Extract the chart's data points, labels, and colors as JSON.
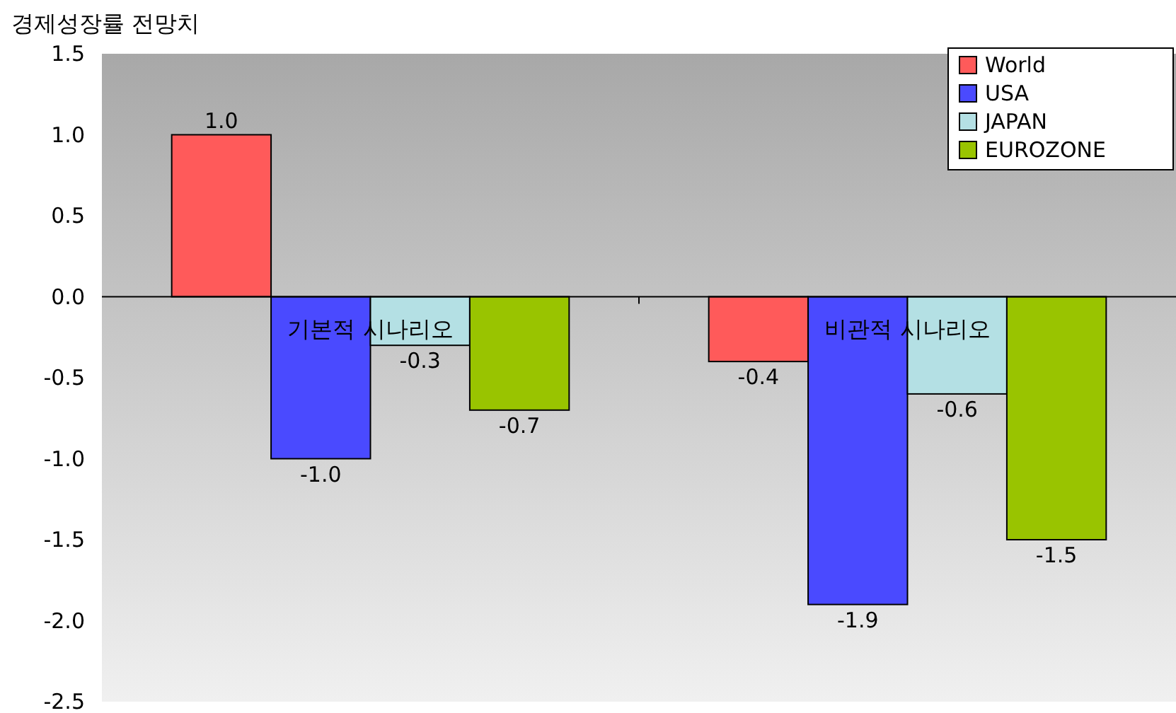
{
  "chart_data": {
    "type": "bar",
    "title": "경제성장률 전망치",
    "categories": [
      "기본적 시나리오",
      "비관적 시나리오"
    ],
    "series": [
      {
        "name": "World",
        "color": "#ff5a5a",
        "values": [
          1.0,
          -0.4
        ],
        "value_labels": [
          "1.0",
          "-0.4"
        ]
      },
      {
        "name": "USA",
        "color": "#4a4aff",
        "values": [
          -1.0,
          -1.9
        ],
        "value_labels": [
          "-1.0",
          "-1.9"
        ]
      },
      {
        "name": "JAPAN",
        "color": "#b4e0e4",
        "values": [
          -0.3,
          -0.6
        ],
        "value_labels": [
          "-0.3",
          "-0.6"
        ]
      },
      {
        "name": "EUROZONE",
        "color": "#99c400",
        "values": [
          -0.7,
          -1.5
        ],
        "value_labels": [
          "-0.7",
          "-1.5"
        ]
      }
    ],
    "ylim": [
      -2.5,
      1.5
    ],
    "yticks": [
      {
        "value": 1.5,
        "label": "1.5"
      },
      {
        "value": 1,
        "label": "1.0"
      },
      {
        "value": 0.5,
        "label": "0.5"
      },
      {
        "value": 0,
        "label": "0.0"
      },
      {
        "value": -0.5,
        "label": "-0.5"
      },
      {
        "value": -1,
        "label": "-1.0"
      },
      {
        "value": -1.5,
        "label": "-1.5"
      },
      {
        "value": -2,
        "label": "-2.0"
      },
      {
        "value": -2.5,
        "label": "-2.5"
      }
    ],
    "grid": false,
    "legend": "top right"
  }
}
